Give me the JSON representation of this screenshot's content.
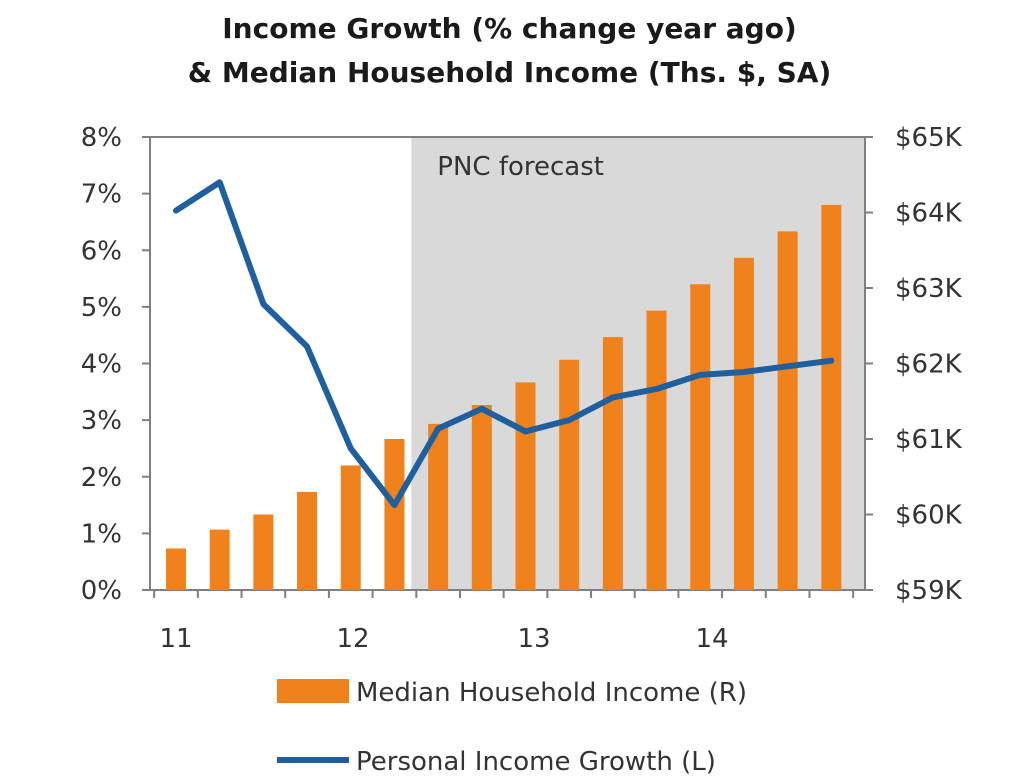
{
  "chart_data": {
    "type": "bar",
    "title_line1": "Income Growth (% change year ago)",
    "title_line2": "& Median Household Income (Ths. $, SA)",
    "left_axis": {
      "ticks": [
        "0%",
        "1%",
        "2%",
        "3%",
        "4%",
        "5%",
        "6%",
        "7%",
        "8%"
      ],
      "ylim": [
        0,
        8
      ]
    },
    "right_axis": {
      "ticks": [
        "$59K",
        "$60K",
        "$61K",
        "$62K",
        "$63K",
        "$64K",
        "$65K"
      ],
      "ylim": [
        59,
        65
      ]
    },
    "x_tick_labels": [
      "11",
      "12",
      "13",
      "14"
    ],
    "forecast_label": "PNC forecast",
    "forecast_start_index": 6,
    "bars": {
      "name": "Median Household Income (R)",
      "color": "#f0821e",
      "axis": "right",
      "values": [
        59.55,
        59.8,
        60.0,
        60.3,
        60.65,
        61.0,
        61.2,
        61.45,
        61.75,
        62.05,
        62.35,
        62.7,
        63.05,
        63.4,
        63.75,
        64.1
      ]
    },
    "line": {
      "name": "Personal Income Growth (L)",
      "color": "#1f5f9e",
      "axis": "left",
      "values": [
        6.7,
        7.2,
        5.05,
        4.3,
        2.5,
        1.5,
        2.85,
        3.2,
        2.8,
        3.0,
        3.4,
        3.55,
        3.8,
        3.85,
        3.95,
        4.05
      ]
    }
  }
}
